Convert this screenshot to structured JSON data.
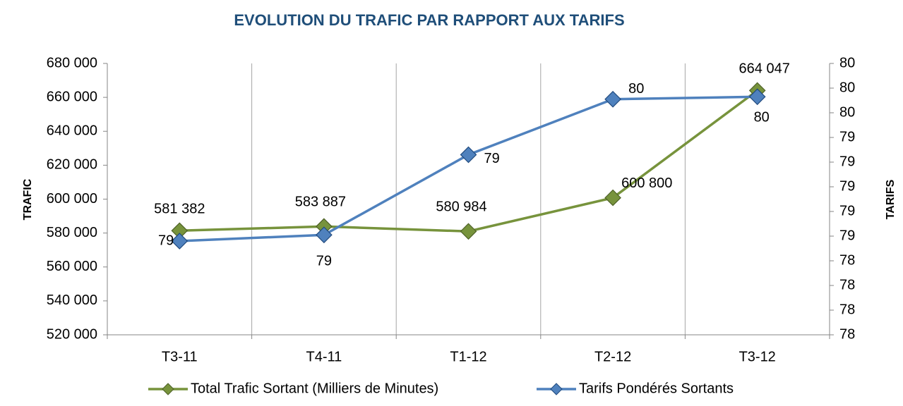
{
  "chart_data": {
    "type": "line",
    "title": "EVOLUTION DU TRAFIC PAR RAPPORT AUX TARIFS",
    "y_label": "TRAFIC",
    "y2_label": "TARIFS",
    "categories": [
      "T3-11",
      "T4-11",
      "T1-12",
      "T2-12",
      "T3-12"
    ],
    "series": [
      {
        "name": "Total Trafic Sortant (Milliers de Minutes)",
        "color": "#77933c",
        "values": [
          581382,
          583887,
          580984,
          600800,
          664047
        ],
        "value_labels": [
          "581 382",
          "583 887",
          "580 984",
          "600 800",
          "664 047"
        ]
      },
      {
        "name": "Tarifs Pondérés Sortants",
        "color": "#4f81bd",
        "axis": "y2",
        "values": [
          78.56,
          78.61,
          79.26,
          79.71,
          79.73
        ],
        "value_labels": [
          "79",
          "79",
          "79",
          "80",
          "80"
        ]
      }
    ],
    "ylim": [
      520000,
      680000
    ],
    "yticks": [
      {
        "value": 520000,
        "label": "520 000"
      },
      {
        "value": 540000,
        "label": "540 000"
      },
      {
        "value": 560000,
        "label": "560 000"
      },
      {
        "value": 580000,
        "label": "580 000"
      },
      {
        "value": 600000,
        "label": "600 000"
      },
      {
        "value": 620000,
        "label": "620 000"
      },
      {
        "value": 640000,
        "label": "640 000"
      },
      {
        "value": 660000,
        "label": "660 000"
      },
      {
        "value": 680000,
        "label": "680 000"
      }
    ],
    "y2lim": [
      77.8,
      80.0
    ],
    "y2ticks": [
      {
        "value": 77.8,
        "label": "78"
      },
      {
        "value": 78.0,
        "label": "78"
      },
      {
        "value": 78.2,
        "label": "78"
      },
      {
        "value": 78.4,
        "label": "78"
      },
      {
        "value": 78.6,
        "label": "79"
      },
      {
        "value": 78.8,
        "label": "79"
      },
      {
        "value": 79.0,
        "label": "79"
      },
      {
        "value": 79.2,
        "label": "79"
      },
      {
        "value": 79.4,
        "label": "79"
      },
      {
        "value": 79.6,
        "label": "80"
      },
      {
        "value": 79.8,
        "label": "80"
      },
      {
        "value": 80.0,
        "label": "80"
      }
    ],
    "legend": "bottom",
    "grid": "x"
  }
}
